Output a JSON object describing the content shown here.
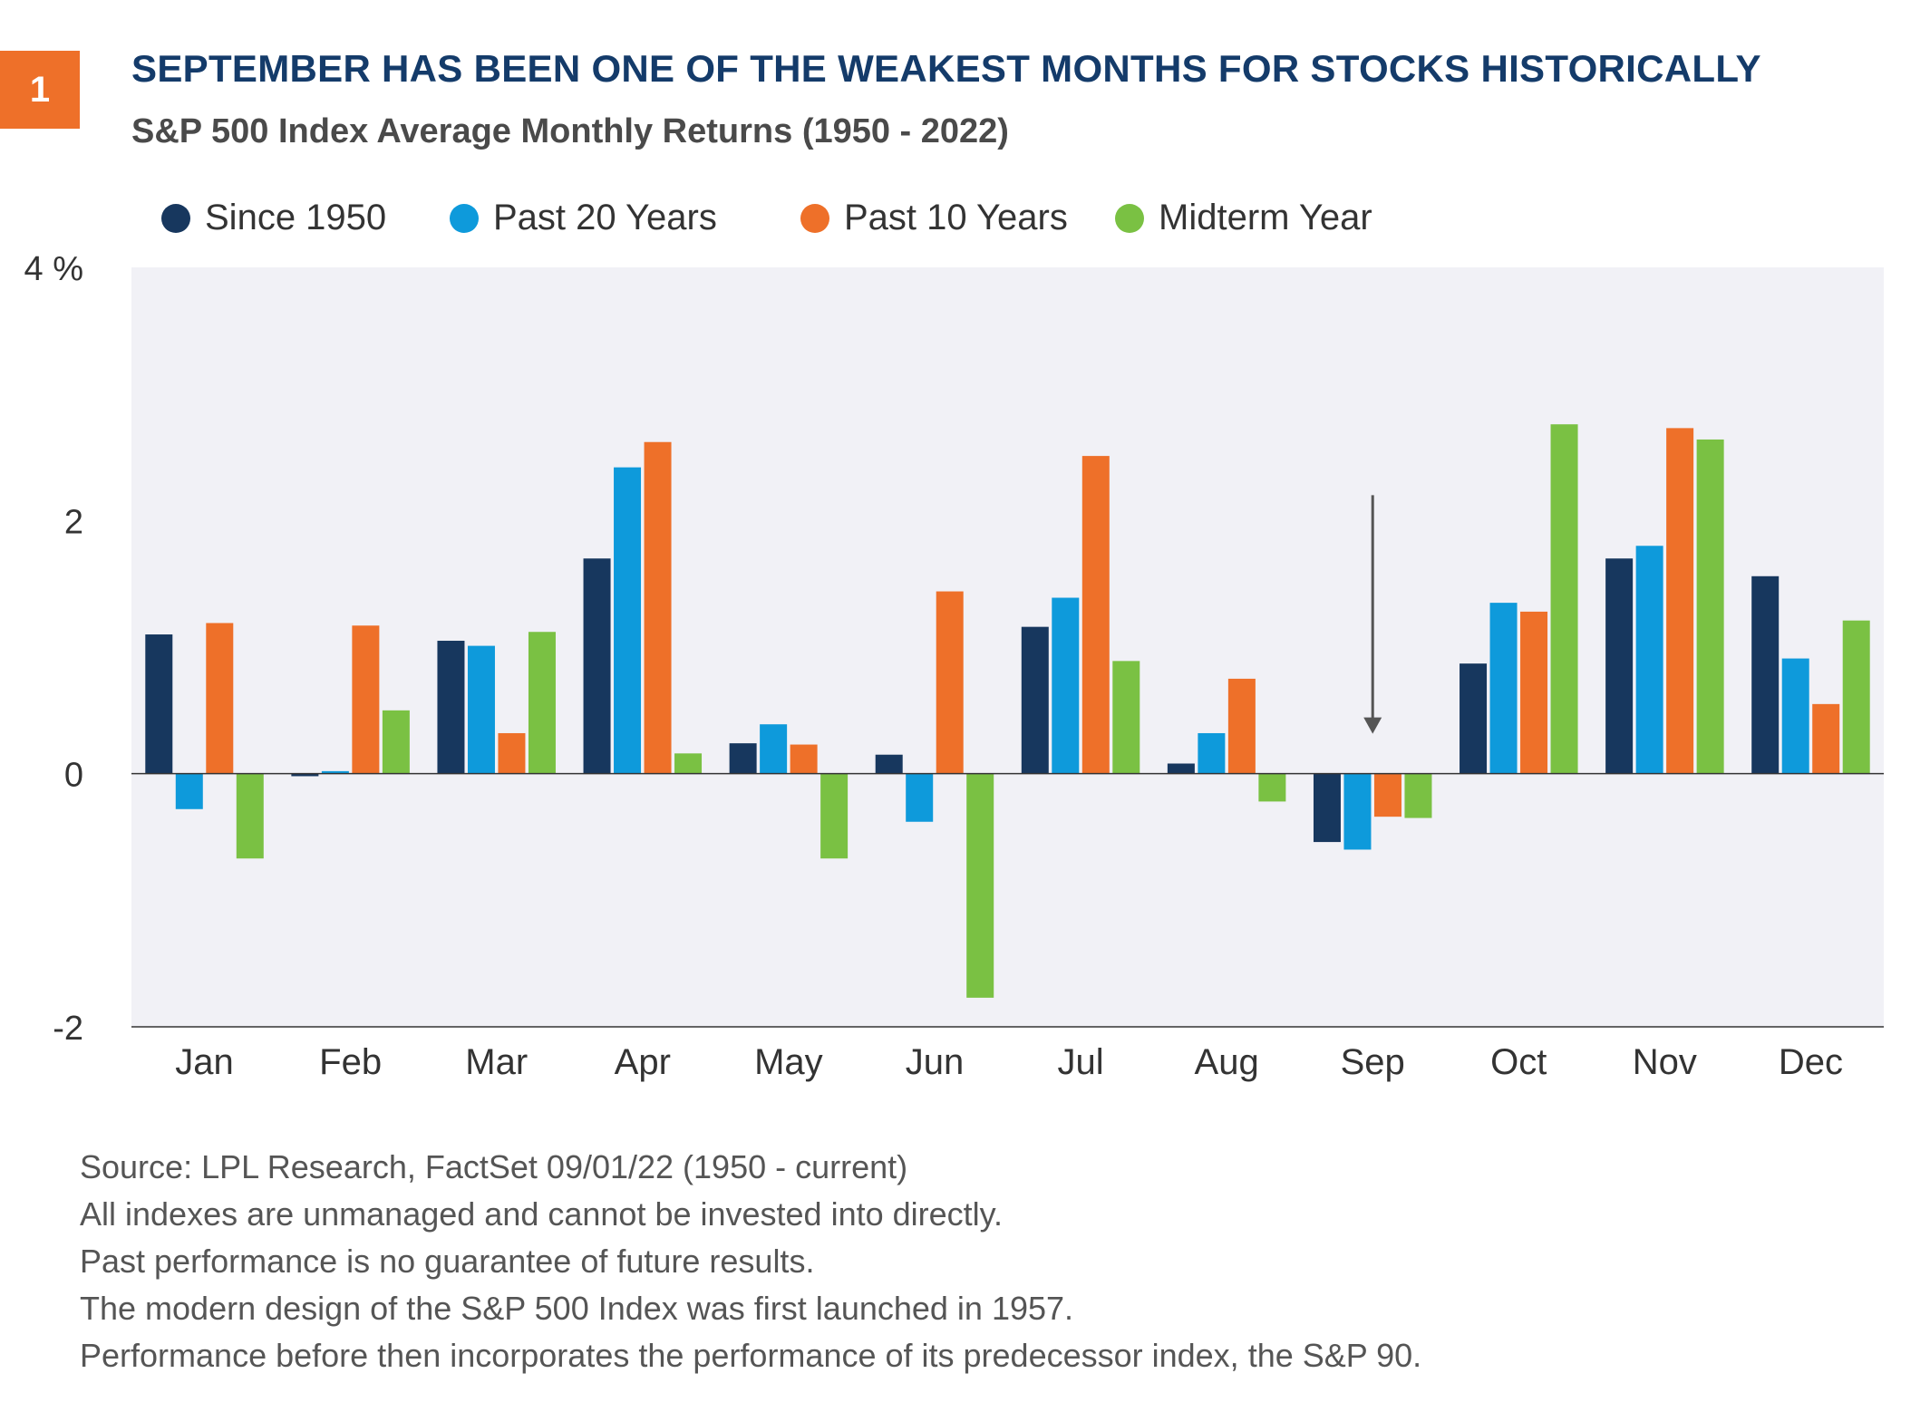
{
  "badge": "1",
  "title": "SEPTEMBER HAS BEEN ONE OF THE WEAKEST MONTHS FOR STOCKS HISTORICALLY",
  "subtitle": "S&P 500 Index Average Monthly Returns (1950 - 2022)",
  "colors": {
    "since_1950": "#17375E",
    "past_20": "#0E9ADB",
    "past_10": "#EE7029",
    "midterm": "#7AC143",
    "plot_bg": "#F1F1F6",
    "badge": "#EE7029",
    "title": "#143B6A"
  },
  "chart_data": {
    "type": "bar",
    "title": "S&P 500 Index Average Monthly Returns (1950 - 2022)",
    "xlabel": "",
    "ylabel": "",
    "ylim": [
      -2,
      4
    ],
    "yticks": [
      "4 %",
      "2",
      "0",
      "-2"
    ],
    "ytick_values": [
      4,
      2,
      0,
      -2
    ],
    "legend_position": "top",
    "grid": false,
    "categories": [
      "Jan",
      "Feb",
      "Mar",
      "Apr",
      "May",
      "Jun",
      "Jul",
      "Aug",
      "Sep",
      "Oct",
      "Nov",
      "Dec"
    ],
    "series": [
      {
        "name": "Since 1950",
        "color": "#17375E",
        "values": [
          1.1,
          -0.02,
          1.05,
          1.7,
          0.24,
          0.15,
          1.16,
          0.08,
          -0.54,
          0.87,
          1.7,
          1.56
        ]
      },
      {
        "name": "Past 20 Years",
        "color": "#0E9ADB",
        "values": [
          -0.28,
          0.02,
          1.01,
          2.42,
          0.39,
          -0.38,
          1.39,
          0.32,
          -0.6,
          1.35,
          1.8,
          0.91
        ]
      },
      {
        "name": "Past 10 Years",
        "color": "#EE7029",
        "values": [
          1.19,
          1.17,
          0.32,
          2.62,
          0.23,
          1.44,
          2.51,
          0.75,
          -0.34,
          1.28,
          2.73,
          0.55
        ]
      },
      {
        "name": "Midterm Year",
        "color": "#7AC143",
        "values": [
          -0.67,
          0.5,
          1.12,
          0.16,
          -0.67,
          -1.77,
          0.89,
          -0.22,
          -0.35,
          2.76,
          2.64,
          1.21
        ]
      }
    ],
    "annotations": [
      {
        "type": "arrow",
        "category": "Sep",
        "direction": "down"
      }
    ]
  },
  "source_lines": [
    "Source: LPL Research, FactSet  09/01/22  (1950 - current)",
    "All indexes are unmanaged and cannot be invested into directly.",
    "Past performance is no guarantee of future results.",
    "The modern design of the S&P 500 Index was first launched in 1957.",
    "Performance before then incorporates the performance of its  predecessor index, the S&P 90."
  ]
}
